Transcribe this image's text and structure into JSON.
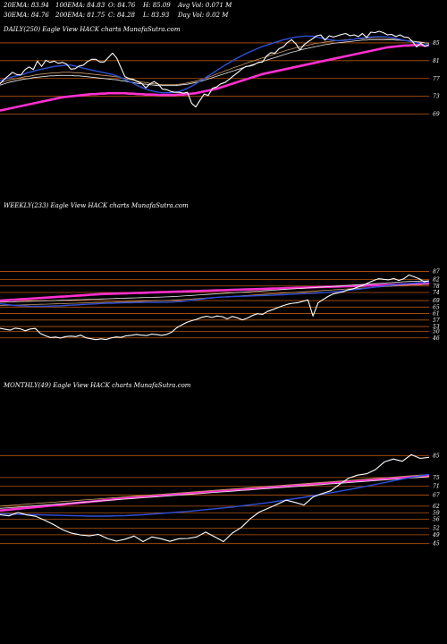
{
  "header": {
    "ema20": "20EMA: 83.94",
    "ema30": "30EMA: 84.76",
    "ema100": "100EMA: 84.83",
    "ema200": "200EMA: 81.75",
    "open": "O: 84.76",
    "close": "C: 84.28",
    "high": "H: 85.09",
    "low": "L: 83.93",
    "avg_vol": "Avg Vol: 0.071 M",
    "day_vol": "Day Vol: 0.02 M"
  },
  "colors": {
    "background": "#000000",
    "price": "#ffffff",
    "ema_short": "#2f4fd8",
    "ema_long": "#ff2fd0",
    "ema_mid": "#c89a66",
    "ema_mid2": "#e8e8e8",
    "level_line": "#b8560f",
    "support_line": "#8a3a0a"
  },
  "chart_data": [
    {
      "type": "line",
      "title": "DAILY(250) Eagle  View  HACK charts MunafaSutra.com",
      "y_ticks": [
        85,
        81,
        77,
        73,
        69
      ],
      "ylim": [
        64.5,
        89
      ],
      "series_kinds": [
        "price",
        "ema_short",
        "ema_mid",
        "ema_mid2",
        "ema_long"
      ],
      "price": [
        75.8,
        76.8,
        77.6,
        78.4,
        77.9,
        77.8,
        79.0,
        79.6,
        79.0,
        80.9,
        79.7,
        81.1,
        80.6,
        80.9,
        80.4,
        80.6,
        80.2,
        79.1,
        79.2,
        79.8,
        80.0,
        80.8,
        81.3,
        81.3,
        80.7,
        80.7,
        81.7,
        82.7,
        81.6,
        79.5,
        77.4,
        77.0,
        76.8,
        76.3,
        75.9,
        74.9,
        75.8,
        76.3,
        75.7,
        74.6,
        74.5,
        74.1,
        73.9,
        73.9,
        73.7,
        73.9,
        71.4,
        70.6,
        72.1,
        73.5,
        73.2,
        74.8,
        75.1,
        75.8,
        76.1,
        76.8,
        77.6,
        78.3,
        79.1,
        79.7,
        79.8,
        80.1,
        80.6,
        80.7,
        82.1,
        82.8,
        82.7,
        83.7,
        84.1,
        85.1,
        85.7,
        84.8,
        83.4,
        84.6,
        85.3,
        85.9,
        86.6,
        86.8,
        85.6,
        86.6,
        86.3,
        86.6,
        86.9,
        87.1,
        86.6,
        86.8,
        86.4,
        87.1,
        86.2,
        87.4,
        87.3,
        87.6,
        87.3,
        86.8,
        86.9,
        86.4,
        86.8,
        86.3,
        86.2,
        85.3,
        84.1,
        84.9,
        84.2,
        84.6
      ],
      "ema_short": [
        76.5,
        76.8,
        77.1,
        77.4,
        77.6,
        77.8,
        78.1,
        78.4,
        78.6,
        78.9,
        79.1,
        79.3,
        79.5,
        79.7,
        79.8,
        79.9,
        80.0,
        80.0,
        79.8,
        79.6,
        79.3,
        79.1,
        78.9,
        78.7,
        78.5,
        78.3,
        78.1,
        77.9,
        77.6,
        77.2,
        76.8,
        76.3,
        75.9,
        75.4,
        75.0,
        74.6,
        74.3,
        74.1,
        73.9,
        73.8,
        73.8,
        73.8,
        73.9,
        74.1,
        74.4,
        74.8,
        75.3,
        75.8,
        76.4,
        77.0,
        77.6,
        78.2,
        78.8,
        79.4,
        80.0,
        80.5,
        81.1,
        81.6,
        82.1,
        82.6,
        83.0,
        83.4,
        83.8,
        84.2,
        84.5,
        84.8,
        85.1,
        85.4,
        85.7,
        85.9,
        86.1,
        86.3,
        86.4,
        86.5,
        86.5,
        86.5,
        86.3,
        86.1,
        85.9,
        85.7,
        85.6,
        85.5,
        85.5,
        85.6,
        85.7,
        85.8,
        86.0,
        86.1,
        86.2,
        86.3,
        86.4,
        86.4,
        86.4,
        86.3,
        86.2,
        86.0,
        85.8,
        85.6,
        85.4,
        85.2,
        85.0,
        84.8,
        84.5,
        84.3
      ],
      "ema_mid": [
        76.0,
        76.3,
        76.6,
        76.8,
        77.0,
        77.2,
        77.4,
        77.5,
        77.7,
        77.9,
        78.0,
        78.1,
        78.2,
        78.3,
        78.3,
        78.4,
        78.4,
        78.4,
        78.3,
        78.3,
        78.2,
        78.1,
        78.0,
        77.9,
        77.8,
        77.7,
        77.6,
        77.5,
        77.4,
        77.2,
        77.0,
        76.8,
        76.6,
        76.4,
        76.2,
        76.1,
        75.9,
        75.8,
        75.7,
        75.6,
        75.6,
        75.6,
        75.6,
        75.7,
        75.8,
        76.0,
        76.2,
        76.4,
        76.7,
        77.0,
        77.3,
        77.6,
        78.0,
        78.3,
        78.7,
        79.0,
        79.4,
        79.7,
        80.0,
        80.4,
        80.7,
        81.0,
        81.3,
        81.6,
        81.9,
        82.2,
        82.5,
        82.8,
        83.1,
        83.4,
        83.6,
        83.9,
        84.1,
        84.3,
        84.5,
        84.7,
        84.9,
        85.0,
        85.2,
        85.3,
        85.4,
        85.5,
        85.6,
        85.7,
        85.8,
        85.8,
        85.9,
        85.9,
        86.0,
        86.0,
        86.0,
        86.0,
        86.0,
        85.9,
        85.9,
        85.8,
        85.7,
        85.6,
        85.5,
        85.4,
        85.3,
        85.2,
        85.0,
        84.9
      ],
      "ema_mid2": [
        75.5,
        75.8,
        76.1,
        76.3,
        76.5,
        76.7,
        76.9,
        77.0,
        77.2,
        77.3,
        77.4,
        77.5,
        77.6,
        77.6,
        77.7,
        77.7,
        77.7,
        77.7,
        77.6,
        77.6,
        77.5,
        77.4,
        77.3,
        77.2,
        77.1,
        77.0,
        76.9,
        76.8,
        76.7,
        76.5,
        76.4,
        76.2,
        76.1,
        75.9,
        75.8,
        75.7,
        75.6,
        75.5,
        75.4,
        75.4,
        75.4,
        75.4,
        75.4,
        75.5,
        75.6,
        75.7,
        75.9,
        76.1,
        76.3,
        76.6,
        76.9,
        77.2,
        77.5,
        77.8,
        78.1,
        78.4,
        78.7,
        79.0,
        79.3,
        79.6,
        79.9,
        80.2,
        80.5,
        80.8,
        81.1,
        81.4,
        81.7,
        82.0,
        82.3,
        82.6,
        82.9,
        83.1,
        83.4,
        83.6,
        83.8,
        84.0,
        84.2,
        84.4,
        84.6,
        84.7,
        84.9,
        85.0,
        85.1,
        85.2,
        85.3,
        85.4,
        85.5,
        85.6,
        85.6,
        85.7,
        85.7,
        85.7,
        85.7,
        85.7,
        85.7,
        85.6,
        85.6,
        85.5,
        85.4,
        85.3,
        85.2,
        85.1,
        85.0,
        84.9
      ],
      "ema_long": [
        69.8,
        70.0,
        70.2,
        70.4,
        70.6,
        70.8,
        71.0,
        71.2,
        71.4,
        71.6,
        71.8,
        72.0,
        72.2,
        72.4,
        72.6,
        72.8,
        72.9,
        73.0,
        73.1,
        73.2,
        73.3,
        73.4,
        73.5,
        73.5,
        73.6,
        73.6,
        73.7,
        73.7,
        73.7,
        73.7,
        73.7,
        73.6,
        73.6,
        73.5,
        73.5,
        73.4,
        73.4,
        73.4,
        73.3,
        73.3,
        73.3,
        73.3,
        73.3,
        73.4,
        73.4,
        73.5,
        73.6,
        73.7,
        73.9,
        74.1,
        74.3,
        74.5,
        74.7,
        75.0,
        75.3,
        75.6,
        75.9,
        76.2,
        76.5,
        76.8,
        77.1,
        77.4,
        77.7,
        78.0,
        78.2,
        78.4,
        78.6,
        78.8,
        79.0,
        79.2,
        79.4,
        79.6,
        79.8,
        80.0,
        80.2,
        80.4,
        80.6,
        80.8,
        81.0,
        81.2,
        81.4,
        81.6,
        81.8,
        82.0,
        82.2,
        82.4,
        82.6,
        82.8,
        83.0,
        83.2,
        83.4,
        83.6,
        83.8,
        84.0,
        84.1,
        84.2,
        84.3,
        84.4,
        84.4,
        84.5,
        84.5,
        84.5,
        84.4,
        84.4
      ]
    },
    {
      "type": "line",
      "title": "WEEKLY(233) Eagle  View  HACK charts MunafaSutra.com",
      "y_ticks": [
        87,
        82,
        78,
        74,
        69,
        65,
        61,
        57,
        53,
        50,
        46
      ],
      "ylim": [
        42,
        90
      ],
      "series_kinds": [
        "price",
        "ema_short",
        "ema_mid",
        "ema_mid2",
        "ema_long"
      ],
      "price": [
        51.9,
        51.3,
        50.8,
        52.0,
        51.6,
        50.4,
        51.5,
        51.8,
        48.7,
        47.3,
        46.2,
        46.5,
        45.9,
        46.8,
        47.1,
        46.8,
        47.7,
        46.1,
        45.5,
        44.9,
        45.4,
        45.0,
        46.0,
        46.6,
        46.3,
        47.3,
        47.6,
        48.1,
        47.7,
        47.4,
        48.3,
        48.0,
        47.6,
        48.1,
        49.5,
        52.2,
        54.0,
        55.6,
        56.6,
        57.5,
        58.7,
        59.3,
        58.6,
        59.5,
        59.1,
        57.7,
        59.2,
        58.4,
        57.1,
        58.2,
        59.8,
        60.9,
        60.5,
        62.3,
        63.4,
        64.6,
        65.8,
        66.8,
        67.4,
        67.7,
        68.6,
        69.4,
        59.5,
        67.6,
        69.7,
        71.6,
        73.1,
        73.7,
        74.5,
        75.7,
        76.3,
        77.5,
        78.5,
        80.0,
        81.4,
        82.5,
        82.1,
        81.8,
        82.6,
        81.4,
        82.5,
        84.8,
        83.7,
        82.5,
        80.6,
        81.1
      ],
      "ema_short": [
        67.0,
        66.7,
        66.3,
        66.0,
        65.8,
        65.7,
        65.5,
        65.5,
        65.5,
        65.5,
        65.6,
        65.7,
        65.8,
        66.0,
        66.2,
        66.3,
        66.5,
        66.7,
        66.9,
        67.0,
        67.2,
        67.3,
        67.4,
        67.5,
        67.6,
        67.7,
        67.7,
        67.8,
        67.8,
        67.9,
        67.9,
        67.9,
        68.0,
        68.0,
        68.1,
        68.3,
        68.5,
        68.8,
        69.2,
        69.6,
        70.0,
        70.4,
        70.7,
        71.0,
        71.2,
        71.3,
        71.5,
        71.6,
        71.7,
        71.8,
        71.9,
        72.0,
        72.1,
        72.2,
        72.3,
        72.5,
        72.6,
        72.8,
        73.0,
        73.1,
        73.3,
        73.4,
        73.5,
        73.7,
        73.9,
        74.1,
        74.4,
        74.7,
        75.0,
        75.3,
        75.7,
        76.0,
        76.4,
        76.8,
        77.2,
        77.6,
        78.0,
        78.4,
        78.7,
        79.0,
        79.3,
        79.6,
        79.8,
        80.0,
        80.2,
        80.3
      ],
      "ema_mid": [
        66.0,
        66.1,
        66.1,
        66.2,
        66.3,
        66.4,
        66.5,
        66.6,
        66.7,
        66.8,
        66.9,
        67.0,
        67.1,
        67.2,
        67.3,
        67.4,
        67.5,
        67.6,
        67.7,
        67.8,
        67.9,
        68.0,
        68.0,
        68.1,
        68.2,
        68.3,
        68.4,
        68.5,
        68.6,
        68.7,
        68.8,
        68.9,
        69.0,
        69.1,
        69.2,
        69.4,
        69.6,
        69.8,
        70.0,
        70.2,
        70.4,
        70.6,
        70.8,
        71.0,
        71.2,
        71.4,
        71.6,
        71.8,
        72.0,
        72.2,
        72.4,
        72.6,
        72.8,
        73.0,
        73.2,
        73.4,
        73.6,
        73.8,
        74.0,
        74.2,
        74.4,
        74.6,
        74.8,
        75.0,
        75.2,
        75.4,
        75.6,
        75.8,
        76.0,
        76.2,
        76.4,
        76.6,
        76.8,
        77.0,
        77.2,
        77.4,
        77.6,
        77.8,
        78.0,
        78.2,
        78.4,
        78.6,
        78.7,
        78.8,
        78.9,
        79.0
      ],
      "ema_mid2": [
        68.0,
        68.1,
        68.2,
        68.3,
        68.4,
        68.5,
        68.6,
        68.7,
        68.8,
        68.9,
        69.0,
        69.1,
        69.2,
        69.3,
        69.4,
        69.5,
        69.6,
        69.7,
        69.8,
        69.9,
        70.0,
        70.1,
        70.2,
        70.3,
        70.4,
        70.5,
        70.6,
        70.7,
        70.8,
        70.9,
        71.0,
        71.1,
        71.2,
        71.3,
        71.4,
        71.6,
        71.8,
        72.0,
        72.2,
        72.4,
        72.6,
        72.8,
        73.0,
        73.2,
        73.4,
        73.6,
        73.8,
        74.0,
        74.2,
        74.4,
        74.6,
        74.8,
        75.0,
        75.2,
        75.4,
        75.6,
        75.8,
        76.0,
        76.2,
        76.4,
        76.6,
        76.8,
        77.0,
        77.2,
        77.4,
        77.6,
        77.8,
        78.0,
        78.2,
        78.4,
        78.6,
        78.8,
        79.0,
        79.2,
        79.4,
        79.6,
        79.8,
        80.0,
        80.2,
        80.4,
        80.6,
        80.8,
        80.9,
        81.0,
        81.1,
        81.2
      ],
      "ema_long": [
        69.0,
        69.2,
        69.4,
        69.6,
        69.8,
        70.0,
        70.2,
        70.4,
        70.6,
        70.8,
        71.0,
        71.2,
        71.4,
        71.6,
        71.8,
        72.0,
        72.2,
        72.4,
        72.6,
        72.8,
        73.0,
        73.1,
        73.2,
        73.3,
        73.4,
        73.5,
        73.6,
        73.7,
        73.8,
        73.9,
        74.0,
        74.1,
        74.2,
        74.3,
        74.4,
        74.5,
        74.6,
        74.7,
        74.8,
        74.9,
        75.0,
        75.1,
        75.2,
        75.3,
        75.4,
        75.5,
        75.6,
        75.7,
        75.8,
        75.9,
        76.0,
        76.1,
        76.2,
        76.3,
        76.4,
        76.5,
        76.6,
        76.7,
        76.8,
        76.9,
        77.0,
        77.1,
        77.2,
        77.3,
        77.4,
        77.5,
        77.6,
        77.7,
        77.8,
        77.9,
        78.0,
        78.1,
        78.2,
        78.3,
        78.4,
        78.5,
        78.6,
        78.7,
        78.8,
        78.9,
        79.0,
        79.1,
        79.2,
        79.3,
        79.4,
        79.5
      ]
    },
    {
      "type": "line",
      "title": "MONTHLY(49) Eagle  View  HACK charts MunafaSutra.com",
      "y_ticks": [
        85,
        75,
        71,
        67,
        62,
        59,
        56,
        52,
        49,
        45
      ],
      "ylim": [
        40,
        90
      ],
      "series_kinds": [
        "price",
        "ema_short",
        "ema_mid",
        "ema_mid2",
        "ema_long"
      ],
      "price": [
        58.1,
        57.6,
        59.1,
        58.0,
        57.4,
        55.6,
        53.6,
        51.3,
        49.7,
        48.9,
        48.5,
        49.2,
        47.3,
        46.1,
        47.0,
        48.4,
        45.9,
        48.0,
        47.2,
        46.0,
        47.2,
        47.3,
        48.0,
        50.2,
        48.1,
        45.9,
        49.8,
        52.3,
        56.3,
        59.3,
        61.0,
        62.8,
        64.7,
        63.7,
        62.5,
        66.1,
        67.7,
        69.0,
        72.0,
        74.7,
        76.1,
        76.7,
        78.6,
        82.1,
        83.4,
        82.4,
        85.4,
        83.7,
        84.2
      ],
      "ema_short": [
        58.5,
        58.4,
        58.3,
        58.2,
        58.1,
        58.0,
        57.9,
        57.8,
        57.7,
        57.6,
        57.5,
        57.5,
        57.5,
        57.6,
        57.7,
        57.9,
        58.1,
        58.4,
        58.7,
        59.0,
        59.3,
        59.6,
        60.0,
        60.4,
        60.8,
        61.2,
        61.6,
        62.1,
        62.6,
        63.1,
        63.6,
        64.2,
        64.8,
        65.4,
        66.0,
        66.7,
        67.4,
        68.1,
        68.8,
        69.5,
        70.3,
        71.1,
        71.9,
        72.7,
        73.5,
        74.3,
        75.1,
        75.8,
        76.4
      ],
      "ema_mid": [
        62.0,
        62.3,
        62.6,
        62.9,
        63.2,
        63.5,
        63.8,
        64.1,
        64.4,
        64.7,
        65.0,
        65.3,
        65.6,
        65.9,
        66.2,
        66.5,
        66.8,
        67.1,
        67.4,
        67.7,
        68.0,
        68.3,
        68.6,
        68.9,
        69.2,
        69.5,
        69.8,
        70.1,
        70.4,
        70.7,
        71.0,
        71.3,
        71.6,
        71.9,
        72.2,
        72.5,
        72.8,
        73.1,
        73.4,
        73.7,
        74.0,
        74.3,
        74.6,
        74.9,
        75.2,
        75.5,
        75.8,
        76.1,
        76.4
      ],
      "ema_mid2": [
        61.0,
        61.3,
        61.6,
        61.9,
        62.2,
        62.5,
        62.8,
        63.1,
        63.4,
        63.7,
        64.0,
        64.3,
        64.6,
        64.9,
        65.2,
        65.5,
        65.8,
        66.1,
        66.4,
        66.7,
        67.0,
        67.3,
        67.6,
        67.9,
        68.2,
        68.5,
        68.8,
        69.1,
        69.4,
        69.7,
        70.0,
        70.3,
        70.6,
        70.9,
        71.2,
        71.5,
        71.8,
        72.1,
        72.4,
        72.7,
        73.0,
        73.3,
        73.6,
        73.9,
        74.2,
        74.5,
        74.8,
        75.1,
        75.4
      ],
      "ema_long": [
        60.0,
        60.4,
        60.8,
        61.2,
        61.6,
        62.0,
        62.4,
        62.8,
        63.2,
        63.6,
        64.0,
        64.4,
        64.8,
        65.2,
        65.6,
        66.0,
        66.3,
        66.6,
        66.9,
        67.2,
        67.5,
        67.8,
        68.1,
        68.4,
        68.7,
        69.0,
        69.3,
        69.6,
        69.9,
        70.2,
        70.5,
        70.8,
        71.1,
        71.4,
        71.7,
        72.0,
        72.3,
        72.6,
        72.9,
        73.2,
        73.5,
        73.8,
        74.1,
        74.4,
        74.7,
        75.0,
        75.3,
        75.6,
        75.9
      ]
    }
  ]
}
